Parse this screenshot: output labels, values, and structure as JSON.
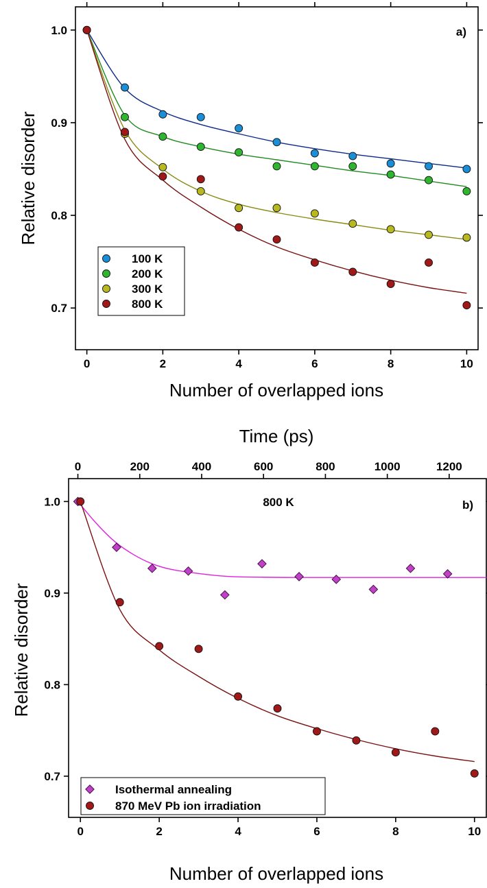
{
  "chart_data": [
    {
      "type": "scatter",
      "panel_label": "a)",
      "xlabel": "Number of overlapped ions",
      "ylabel": "Relative disorder",
      "xlim": [
        -0.3,
        10.3
      ],
      "ylim": [
        0.655,
        1.025
      ],
      "x_ticks": [
        0,
        2,
        4,
        6,
        8,
        10
      ],
      "x_tick_labels": [
        "0",
        "2",
        "4",
        "6",
        "8",
        "10"
      ],
      "y_ticks": [
        0.7,
        0.8,
        0.9,
        1.0
      ],
      "y_tick_labels": [
        "0.7",
        "0.8",
        "0.9",
        "1.0"
      ],
      "legend_position": "bottom-left",
      "grid": false,
      "series": [
        {
          "name": "100 K",
          "color": "#0a2a8a",
          "marker_color": "#1a8fd8",
          "x": [
            0,
            1,
            2,
            3,
            4,
            5,
            6,
            7,
            8,
            9,
            10
          ],
          "y": [
            1.0,
            0.938,
            0.909,
            0.906,
            0.894,
            0.879,
            0.867,
            0.864,
            0.856,
            0.853,
            0.85
          ],
          "fit": [
            1.0,
            0.937,
            0.912,
            0.898,
            0.888,
            0.879,
            0.872,
            0.866,
            0.861,
            0.856,
            0.851
          ]
        },
        {
          "name": "200 K",
          "color": "#1f8a1f",
          "marker_color": "#2fb52f",
          "x": [
            0,
            1,
            2,
            3,
            4,
            5,
            6,
            7,
            8,
            9,
            10
          ],
          "y": [
            1.0,
            0.906,
            0.885,
            0.874,
            0.868,
            0.853,
            0.853,
            0.853,
            0.844,
            0.838,
            0.826
          ],
          "fit": [
            1.0,
            0.908,
            0.885,
            0.874,
            0.866,
            0.86,
            0.854,
            0.848,
            0.843,
            0.837,
            0.831
          ]
        },
        {
          "name": "300 K",
          "color": "#8a8a10",
          "marker_color": "#b8b820",
          "x": [
            0,
            1,
            2,
            3,
            4,
            5,
            6,
            7,
            8,
            9,
            10
          ],
          "y": [
            1.0,
            0.888,
            0.852,
            0.826,
            0.808,
            0.808,
            0.802,
            0.791,
            0.785,
            0.779,
            0.776
          ],
          "fit": [
            1.0,
            0.892,
            0.85,
            0.826,
            0.812,
            0.803,
            0.796,
            0.79,
            0.784,
            0.779,
            0.774
          ]
        },
        {
          "name": "800 K",
          "color": "#7a1010",
          "marker_color": "#a01818",
          "x": [
            0,
            1,
            2,
            3,
            4,
            5,
            6,
            7,
            8,
            9,
            10
          ],
          "y": [
            1.0,
            0.89,
            0.842,
            0.839,
            0.787,
            0.774,
            0.749,
            0.739,
            0.726,
            0.749,
            0.703
          ],
          "fit": [
            1.0,
            0.882,
            0.838,
            0.809,
            0.785,
            0.766,
            0.752,
            0.74,
            0.73,
            0.722,
            0.716
          ]
        }
      ]
    },
    {
      "type": "scatter",
      "panel_label": "b)",
      "annotation": "800 K",
      "xlabel": "Number of overlapped ions",
      "x2label": "Time (ps)",
      "ylabel": "Relative disorder",
      "xlim": [
        -0.3,
        10.3
      ],
      "ylim": [
        0.655,
        1.025
      ],
      "x_ticks": [
        0,
        2,
        4,
        6,
        8,
        10
      ],
      "x_tick_labels": [
        "0",
        "2",
        "4",
        "6",
        "8",
        "10"
      ],
      "x2lim": [
        -30,
        1320
      ],
      "x2_ticks": [
        0,
        200,
        400,
        600,
        800,
        1000,
        1200
      ],
      "x2_tick_labels": [
        "0",
        "200",
        "400",
        "600",
        "800",
        "1000",
        "1200"
      ],
      "y_ticks": [
        0.7,
        0.8,
        0.9,
        1.0
      ],
      "y_tick_labels": [
        "0.7",
        "0.8",
        "0.9",
        "1.0"
      ],
      "legend_position": "bottom-left",
      "grid": false,
      "series": [
        {
          "name": "Isothermal annealing",
          "axis": "top",
          "marker": "diamond",
          "color": "#e020e0",
          "marker_color": "#c040c8",
          "x": [
            0,
            125,
            240,
            357,
            475,
            595,
            715,
            835,
            955,
            1075,
            1195
          ],
          "y": [
            1.0,
            0.95,
            0.927,
            0.924,
            0.898,
            0.932,
            0.918,
            0.915,
            0.904,
            0.927,
            0.921
          ],
          "fit_x": [
            0,
            60,
            120,
            180,
            240,
            300,
            400,
            500,
            700,
            900,
            1100,
            1320
          ],
          "fit": [
            1.0,
            0.976,
            0.956,
            0.942,
            0.932,
            0.926,
            0.921,
            0.918,
            0.917,
            0.917,
            0.917,
            0.917
          ]
        },
        {
          "name": "870 MeV Pb ion irradiation",
          "axis": "bottom",
          "marker": "circle",
          "color": "#7a1010",
          "marker_color": "#a01818",
          "x": [
            0,
            1,
            2,
            3,
            4,
            5,
            6,
            7,
            8,
            9,
            10
          ],
          "y": [
            1.0,
            0.89,
            0.842,
            0.839,
            0.787,
            0.774,
            0.749,
            0.739,
            0.726,
            0.749,
            0.703
          ],
          "fit": [
            1.0,
            0.882,
            0.838,
            0.809,
            0.785,
            0.766,
            0.752,
            0.74,
            0.73,
            0.722,
            0.716
          ]
        }
      ]
    }
  ]
}
